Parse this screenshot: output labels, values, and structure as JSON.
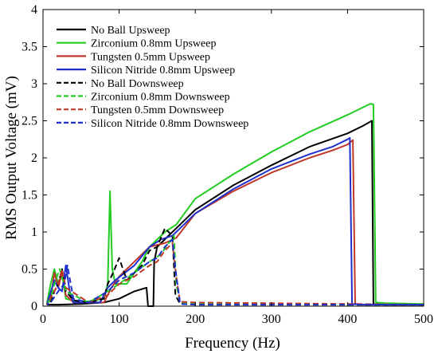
{
  "chart_data": {
    "type": "line",
    "title": "",
    "xlabel": "Frequency (Hz)",
    "ylabel": "RMS Output Voltage (mV)",
    "xlim": [
      0,
      500
    ],
    "ylim": [
      0,
      4
    ],
    "xticks": [
      "0",
      "100",
      "200",
      "300",
      "400",
      "500"
    ],
    "yticks": [
      "0",
      "0.5",
      "1",
      "1.5",
      "2",
      "2.5",
      "3",
      "3.5",
      "4"
    ],
    "grid": false,
    "legend_position": "top-left",
    "series": [
      {
        "name": "No Ball Upsweep",
        "color": "#000000",
        "dash": "solid",
        "points": [
          [
            5,
            0.02
          ],
          [
            20,
            0.02
          ],
          [
            50,
            0.03
          ],
          [
            80,
            0.05
          ],
          [
            100,
            0.1
          ],
          [
            120,
            0.2
          ],
          [
            136,
            0.25
          ],
          [
            138,
            0.0
          ],
          [
            145,
            0.0
          ],
          [
            146,
            0.6
          ],
          [
            150,
            0.8
          ],
          [
            165,
            0.95
          ],
          [
            180,
            1.1
          ],
          [
            200,
            1.3
          ],
          [
            250,
            1.63
          ],
          [
            300,
            1.9
          ],
          [
            350,
            2.15
          ],
          [
            400,
            2.33
          ],
          [
            420,
            2.43
          ],
          [
            432,
            2.5
          ],
          [
            434,
            0.03
          ],
          [
            450,
            0.02
          ],
          [
            500,
            0.02
          ]
        ]
      },
      {
        "name": "Zirconium 0.8mm Upsweep",
        "color": "#22cc22",
        "dash": "solid",
        "points": [
          [
            5,
            0.03
          ],
          [
            10,
            0.3
          ],
          [
            15,
            0.5
          ],
          [
            20,
            0.3
          ],
          [
            25,
            0.45
          ],
          [
            30,
            0.1
          ],
          [
            50,
            0.05
          ],
          [
            80,
            0.1
          ],
          [
            85,
            0.3
          ],
          [
            88,
            1.55
          ],
          [
            91,
            0.5
          ],
          [
            95,
            0.3
          ],
          [
            110,
            0.3
          ],
          [
            130,
            0.6
          ],
          [
            140,
            0.8
          ],
          [
            160,
            1.0
          ],
          [
            175,
            1.1
          ],
          [
            200,
            1.45
          ],
          [
            250,
            1.78
          ],
          [
            300,
            2.08
          ],
          [
            350,
            2.35
          ],
          [
            400,
            2.58
          ],
          [
            430,
            2.73
          ],
          [
            434,
            2.72
          ],
          [
            437,
            0.05
          ],
          [
            450,
            0.04
          ],
          [
            500,
            0.03
          ]
        ]
      },
      {
        "name": "Tungsten 0.5mm Upsweep",
        "color": "#c0392b",
        "dash": "solid",
        "points": [
          [
            5,
            0.02
          ],
          [
            10,
            0.1
          ],
          [
            15,
            0.45
          ],
          [
            20,
            0.25
          ],
          [
            25,
            0.45
          ],
          [
            30,
            0.15
          ],
          [
            40,
            0.05
          ],
          [
            80,
            0.05
          ],
          [
            90,
            0.25
          ],
          [
            100,
            0.4
          ],
          [
            120,
            0.6
          ],
          [
            140,
            0.8
          ],
          [
            160,
            0.85
          ],
          [
            175,
            0.92
          ],
          [
            200,
            1.25
          ],
          [
            250,
            1.55
          ],
          [
            300,
            1.8
          ],
          [
            350,
            2.0
          ],
          [
            380,
            2.1
          ],
          [
            400,
            2.18
          ],
          [
            407,
            2.24
          ],
          [
            410,
            0.03
          ],
          [
            420,
            0.02
          ],
          [
            500,
            0.02
          ]
        ]
      },
      {
        "name": "Silicon Nitride 0.8mm Upsweep",
        "color": "#1f2fcc",
        "dash": "solid",
        "points": [
          [
            5,
            0.02
          ],
          [
            15,
            0.35
          ],
          [
            20,
            0.25
          ],
          [
            25,
            0.2
          ],
          [
            30,
            0.55
          ],
          [
            35,
            0.2
          ],
          [
            40,
            0.05
          ],
          [
            75,
            0.05
          ],
          [
            85,
            0.25
          ],
          [
            95,
            0.35
          ],
          [
            120,
            0.55
          ],
          [
            140,
            0.8
          ],
          [
            155,
            0.9
          ],
          [
            170,
            0.95
          ],
          [
            200,
            1.25
          ],
          [
            250,
            1.58
          ],
          [
            300,
            1.85
          ],
          [
            350,
            2.05
          ],
          [
            380,
            2.15
          ],
          [
            400,
            2.25
          ],
          [
            403,
            2.27
          ],
          [
            406,
            0.03
          ],
          [
            420,
            0.02
          ],
          [
            500,
            0.02
          ]
        ]
      },
      {
        "name": "No Ball Downsweep",
        "color": "#000000",
        "dash": "dashed",
        "points": [
          [
            500,
            0.02
          ],
          [
            400,
            0.02
          ],
          [
            300,
            0.02
          ],
          [
            200,
            0.02
          ],
          [
            180,
            0.03
          ],
          [
            174,
            0.15
          ],
          [
            170,
            0.95
          ],
          [
            160,
            1.05
          ],
          [
            150,
            0.8
          ],
          [
            140,
            0.75
          ],
          [
            130,
            0.55
          ],
          [
            110,
            0.35
          ],
          [
            100,
            0.65
          ],
          [
            92,
            0.45
          ],
          [
            85,
            0.3
          ],
          [
            80,
            0.1
          ],
          [
            60,
            0.05
          ],
          [
            40,
            0.08
          ],
          [
            30,
            0.2
          ],
          [
            25,
            0.5
          ],
          [
            20,
            0.3
          ],
          [
            15,
            0.2
          ],
          [
            10,
            0.05
          ],
          [
            5,
            0.02
          ]
        ]
      },
      {
        "name": "Zirconium 0.8mm Downsweep",
        "color": "#22cc22",
        "dash": "dashed",
        "points": [
          [
            500,
            0.02
          ],
          [
            400,
            0.02
          ],
          [
            300,
            0.03
          ],
          [
            200,
            0.03
          ],
          [
            180,
            0.05
          ],
          [
            175,
            0.3
          ],
          [
            172,
            0.95
          ],
          [
            165,
            0.85
          ],
          [
            155,
            0.7
          ],
          [
            140,
            0.6
          ],
          [
            120,
            0.45
          ],
          [
            100,
            0.3
          ],
          [
            85,
            0.2
          ],
          [
            60,
            0.05
          ],
          [
            30,
            0.2
          ],
          [
            22,
            0.5
          ],
          [
            15,
            0.3
          ],
          [
            10,
            0.1
          ],
          [
            5,
            0.02
          ]
        ]
      },
      {
        "name": "Tungsten 0.5mm Downsweep",
        "color": "#c0392b",
        "dash": "dashed",
        "points": [
          [
            500,
            0.02
          ],
          [
            400,
            0.03
          ],
          [
            300,
            0.04
          ],
          [
            200,
            0.05
          ],
          [
            180,
            0.06
          ],
          [
            175,
            0.4
          ],
          [
            170,
            0.85
          ],
          [
            160,
            0.75
          ],
          [
            150,
            0.6
          ],
          [
            140,
            0.55
          ],
          [
            120,
            0.4
          ],
          [
            100,
            0.3
          ],
          [
            85,
            0.15
          ],
          [
            60,
            0.05
          ],
          [
            30,
            0.25
          ],
          [
            25,
            0.5
          ],
          [
            20,
            0.3
          ],
          [
            12,
            0.15
          ],
          [
            5,
            0.02
          ]
        ]
      },
      {
        "name": "Silicon Nitride 0.8mm Downsweep",
        "color": "#1f2fcc",
        "dash": "dashed",
        "points": [
          [
            500,
            0.02
          ],
          [
            400,
            0.02
          ],
          [
            300,
            0.02
          ],
          [
            200,
            0.02
          ],
          [
            180,
            0.03
          ],
          [
            174,
            0.5
          ],
          [
            170,
            0.9
          ],
          [
            160,
            0.8
          ],
          [
            150,
            0.65
          ],
          [
            140,
            0.6
          ],
          [
            120,
            0.45
          ],
          [
            100,
            0.35
          ],
          [
            85,
            0.2
          ],
          [
            60,
            0.05
          ],
          [
            40,
            0.1
          ],
          [
            32,
            0.55
          ],
          [
            28,
            0.3
          ],
          [
            20,
            0.2
          ],
          [
            10,
            0.05
          ],
          [
            5,
            0.02
          ]
        ]
      }
    ]
  }
}
